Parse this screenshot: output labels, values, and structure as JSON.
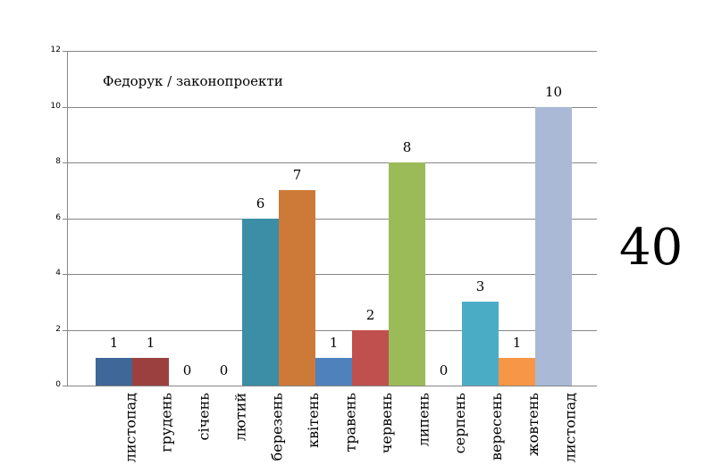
{
  "chart_data": {
    "type": "bar",
    "title": "Федорук / законопроекти",
    "xlabel": "",
    "ylabel": "",
    "ylim": [
      0,
      12
    ],
    "yticks": [
      0,
      2,
      4,
      6,
      8,
      10,
      12
    ],
    "grid": true,
    "legend": null,
    "categories": [
      "листопад",
      "грудень",
      "січень",
      "лютий",
      "березень",
      "квітень",
      "травень",
      "червень",
      "липень",
      "серпень",
      "вересень",
      "жовтень",
      "листопад"
    ],
    "values": [
      1,
      1,
      0,
      0,
      6,
      7,
      1,
      2,
      8,
      0,
      3,
      1,
      10
    ],
    "colors": [
      "#3f6797",
      "#9c403f",
      "#7c9a43",
      "#66508a",
      "#3b8ea5",
      "#cd7a38",
      "#4f81bd",
      "#c0504d",
      "#9bbb59",
      "#8064a2",
      "#4bacc6",
      "#f79646",
      "#a9b9d6"
    ],
    "annotations": [
      {
        "text": "40",
        "position": "right"
      }
    ]
  },
  "total": "40"
}
